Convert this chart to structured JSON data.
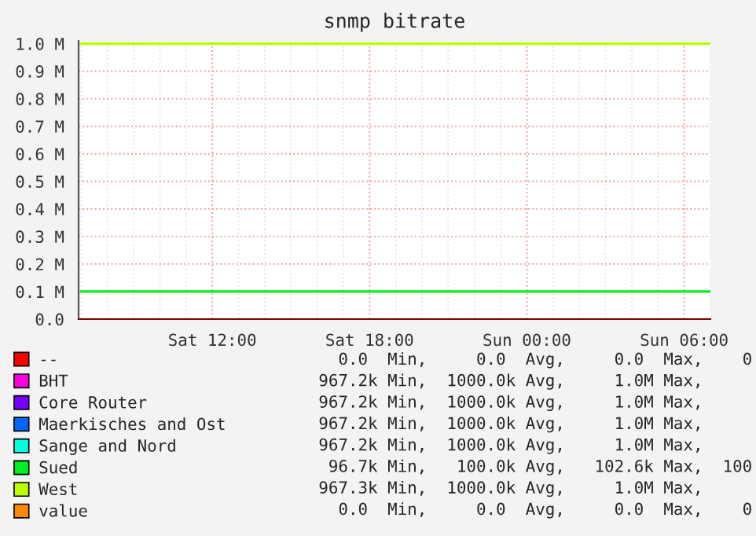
{
  "chart_data": {
    "type": "line",
    "title": "snmp bitrate",
    "categories": [
      null,
      null,
      null,
      null,
      null,
      "Sat 12:00",
      null,
      null,
      null,
      null,
      null,
      "Sat 18:00",
      null,
      null,
      null,
      null,
      null,
      "Sun 00:00",
      null,
      null,
      null,
      null,
      null,
      "Sun 06:00",
      null
    ],
    "ylim": [
      0,
      1.01
    ],
    "yticks": [
      {
        "value": 0,
        "label": "0.0"
      },
      {
        "value": 0.1,
        "label": "0.1 M"
      },
      {
        "value": 0.2,
        "label": "0.2 M"
      },
      {
        "value": 0.3,
        "label": "0.3 M"
      },
      {
        "value": 0.4,
        "label": "0.4 M"
      },
      {
        "value": 0.5,
        "label": "0.5 M"
      },
      {
        "value": 0.6,
        "label": "0.6 M"
      },
      {
        "value": 0.7,
        "label": "0.7 M"
      },
      {
        "value": 0.8,
        "label": "0.8 M"
      },
      {
        "value": 0.9,
        "label": "0.9 M"
      },
      {
        "value": 1.0,
        "label": "1.0 M"
      }
    ],
    "grid": true,
    "legend": "bottom",
    "marker": "none",
    "line_style": "solid",
    "series": [
      {
        "name": "--",
        "color": "#ff0000",
        "values": [
          null,
          null,
          null,
          null,
          null,
          null,
          null,
          null,
          null,
          null,
          null,
          null,
          null,
          null,
          null,
          null,
          null,
          null,
          null,
          null,
          null,
          null,
          null,
          null,
          null
        ]
      },
      {
        "name": "BHT",
        "color": "#ff00dd",
        "values": [
          null,
          null,
          null,
          null,
          null,
          null,
          null,
          null,
          null,
          null,
          null,
          null,
          null,
          null,
          null,
          null,
          null,
          null,
          null,
          null,
          null,
          null,
          null,
          null,
          null
        ]
      },
      {
        "name": "Core Router",
        "color": "#7700ff",
        "values": [
          null,
          null,
          null,
          null,
          null,
          null,
          null,
          null,
          null,
          null,
          null,
          null,
          null,
          null,
          null,
          null,
          null,
          null,
          null,
          null,
          null,
          null,
          null,
          null,
          null
        ]
      },
      {
        "name": "Maerkisches and Ost",
        "color": "#0066ff",
        "values": [
          null,
          null,
          null,
          null,
          null,
          null,
          null,
          null,
          null,
          null,
          null,
          null,
          null,
          null,
          null,
          null,
          null,
          null,
          null,
          null,
          null,
          null,
          null,
          null,
          null
        ]
      },
      {
        "name": "Sange and Nord",
        "color": "#00ffdd",
        "values": [
          null,
          null,
          null,
          null,
          null,
          null,
          null,
          null,
          null,
          null,
          null,
          null,
          null,
          null,
          null,
          null,
          null,
          null,
          null,
          null,
          null,
          null,
          null,
          null,
          null
        ]
      },
      {
        "name": "Sued",
        "color": "#00ee22",
        "values": [
          0.1,
          0.1,
          0.1,
          0.1,
          0.1,
          0.1,
          0.1,
          0.1,
          0.1,
          0.1,
          0.1,
          0.1,
          0.1,
          0.1,
          0.1,
          0.1,
          0.1,
          0.1,
          0.1,
          0.1,
          0.1,
          0.1,
          0.1,
          0.1,
          0.1
        ]
      },
      {
        "name": "West",
        "color": "#bbff00",
        "values": [
          1.0,
          1.0,
          1.0,
          1.0,
          1.0,
          1.0,
          1.0,
          1.0,
          1.0,
          1.0,
          1.0,
          1.0,
          1.0,
          1.0,
          1.0,
          1.0,
          1.0,
          1.0,
          1.0,
          1.0,
          1.0,
          1.0,
          1.0,
          1.0,
          1.0
        ]
      },
      {
        "name": "value",
        "color": "#ff8800",
        "values": [
          null,
          null,
          null,
          null,
          null,
          null,
          null,
          null,
          null,
          null,
          null,
          null,
          null,
          null,
          null,
          null,
          null,
          null,
          null,
          null,
          null,
          null,
          null,
          null,
          null
        ]
      }
    ],
    "annotations": [
      "0.0  Min,     0.0  Avg,     0.0  Max,    0",
      "967.2k Min,  1000.0k Avg,     1.0M Max,     ",
      "967.2k Min,  1000.0k Avg,     1.0M Max,     ",
      "967.2k Min,  1000.0k Avg,     1.0M Max,     ",
      "967.2k Min,  1000.0k Avg,     1.0M Max,     ",
      "96.7k Min,   100.0k Avg,   102.6k Max,  100",
      "967.3k Min,  1000.0k Avg,     1.0M Max,     ",
      "0.0  Min,     0.0  Avg,     0.0  Max,    0"
    ]
  }
}
